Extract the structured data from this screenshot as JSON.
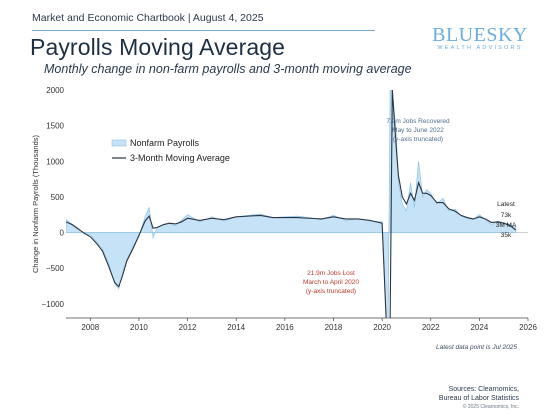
{
  "header": {
    "kicker": "Market and Economic Chartbook | August 4, 2025",
    "title": "Payrolls Moving Average",
    "subtitle": "Monthly change in non-farm payrolls and 3-month moving average"
  },
  "logo": {
    "main": "BLUESKY",
    "sub": "WEALTH ADVISORS"
  },
  "footnote": "Latest data point is Jul 2025",
  "sources": {
    "line1": "Sources: Clearnomics,",
    "line2": "Bureau of Labor Statistics"
  },
  "copyright": "© 2025 Clearnomics, Inc.",
  "colors": {
    "area": "#c5e2f6",
    "area_line": "#8cc4ea",
    "ma_line": "#2b3440",
    "axis": "#444444",
    "loss_note": "#c0392b",
    "gain_note": "#4f6f8f"
  },
  "chart_data": {
    "type": "area",
    "ylabel": "Change in Nonfarm Payrolls (Thousands)",
    "xlim": [
      2007,
      2026
    ],
    "ylim": [
      -1200,
      2000
    ],
    "yticks": [
      2000,
      1500,
      1000,
      500,
      0,
      -500,
      -1000
    ],
    "ytick_labels": [
      "2000",
      "1500",
      "1000",
      "500",
      "0",
      "−500",
      "−1000"
    ],
    "xticks": [
      2008,
      2010,
      2012,
      2014,
      2016,
      2018,
      2020,
      2022,
      2024,
      2026
    ],
    "xtick_labels": [
      "2008",
      "2010",
      "2012",
      "2014",
      "2016",
      "2018",
      "2020",
      "2022",
      "2024",
      "2026"
    ],
    "legend": {
      "placement": "top-left",
      "items": [
        {
          "name": "Nonfarm Payrolls",
          "style": "area"
        },
        {
          "name": "3-Month Moving Average",
          "style": "line"
        }
      ]
    },
    "annotations": {
      "loss": {
        "lines": [
          "21.9m Jobs Lost",
          "March to April 2020",
          "(y-axis truncated)"
        ],
        "x": 2020.2,
        "y": -620
      },
      "gain": {
        "lines": [
          "7.2m Jobs Recovered",
          "May to June 2022",
          "(y-axis truncated)"
        ],
        "x": 2021.8,
        "y": 1540
      },
      "latest": {
        "lines": [
          "Latest",
          "73k",
          "3M MA",
          "35k"
        ]
      }
    },
    "series": [
      {
        "name": "Nonfarm Payrolls",
        "x": [
          2007.0,
          2007.25,
          2007.5,
          2007.75,
          2008.0,
          2008.25,
          2008.5,
          2008.75,
          2009.0,
          2009.17,
          2009.33,
          2009.5,
          2009.75,
          2010.0,
          2010.25,
          2010.42,
          2010.58,
          2010.75,
          2011.0,
          2011.25,
          2011.5,
          2011.75,
          2012.0,
          2012.5,
          2013.0,
          2013.5,
          2014.0,
          2014.5,
          2015.0,
          2015.5,
          2016.0,
          2016.5,
          2017.0,
          2017.5,
          2018.0,
          2018.5,
          2019.0,
          2019.5,
          2020.0,
          2020.17,
          2020.25,
          2020.33,
          2020.42,
          2020.5,
          2020.58,
          2020.67,
          2020.83,
          2021.0,
          2021.17,
          2021.33,
          2021.5,
          2021.67,
          2021.83,
          2022.0,
          2022.25,
          2022.5,
          2022.75,
          2023.0,
          2023.25,
          2023.5,
          2023.75,
          2024.0,
          2024.25,
          2024.5,
          2024.75,
          2025.0,
          2025.25,
          2025.5
        ],
        "values": [
          180,
          120,
          60,
          -20,
          -30,
          -130,
          -230,
          -430,
          -720,
          -790,
          -560,
          -380,
          -200,
          -60,
          220,
          350,
          -70,
          70,
          110,
          130,
          95,
          170,
          250,
          150,
          220,
          160,
          220,
          240,
          260,
          210,
          220,
          230,
          210,
          180,
          240,
          170,
          190,
          160,
          150,
          -1500,
          -2000,
          2000,
          2000,
          1700,
          1400,
          700,
          400,
          300,
          700,
          350,
          1000,
          500,
          600,
          550,
          400,
          480,
          300,
          330,
          230,
          200,
          180,
          250,
          180,
          110,
          160,
          140,
          110,
          73
        ]
      },
      {
        "name": "3-Month Moving Average",
        "x": [
          2007.0,
          2007.25,
          2007.5,
          2007.75,
          2008.0,
          2008.25,
          2008.5,
          2008.75,
          2009.0,
          2009.17,
          2009.33,
          2009.5,
          2009.75,
          2010.0,
          2010.25,
          2010.42,
          2010.58,
          2010.75,
          2011.0,
          2011.25,
          2011.5,
          2011.75,
          2012.0,
          2012.5,
          2013.0,
          2013.5,
          2014.0,
          2014.5,
          2015.0,
          2015.5,
          2016.0,
          2016.5,
          2017.0,
          2017.5,
          2018.0,
          2018.5,
          2019.0,
          2019.5,
          2020.0,
          2020.17,
          2020.25,
          2020.33,
          2020.42,
          2020.5,
          2020.58,
          2020.67,
          2020.83,
          2021.0,
          2021.17,
          2021.33,
          2021.5,
          2021.67,
          2021.83,
          2022.0,
          2022.25,
          2022.5,
          2022.75,
          2023.0,
          2023.25,
          2023.5,
          2023.75,
          2024.0,
          2024.25,
          2024.5,
          2024.75,
          2025.0,
          2025.25,
          2025.5
        ],
        "values": [
          150,
          110,
          50,
          -10,
          -60,
          -150,
          -260,
          -470,
          -700,
          -760,
          -600,
          -400,
          -230,
          -40,
          160,
          230,
          60,
          70,
          110,
          130,
          120,
          150,
          200,
          170,
          200,
          180,
          220,
          230,
          240,
          210,
          210,
          210,
          200,
          190,
          220,
          190,
          190,
          170,
          130,
          -1500,
          -2000,
          -1300,
          2000,
          1600,
          1200,
          800,
          500,
          400,
          550,
          450,
          700,
          550,
          550,
          520,
          420,
          420,
          330,
          300,
          240,
          210,
          190,
          220,
          190,
          140,
          150,
          130,
          100,
          35
        ]
      }
    ]
  }
}
